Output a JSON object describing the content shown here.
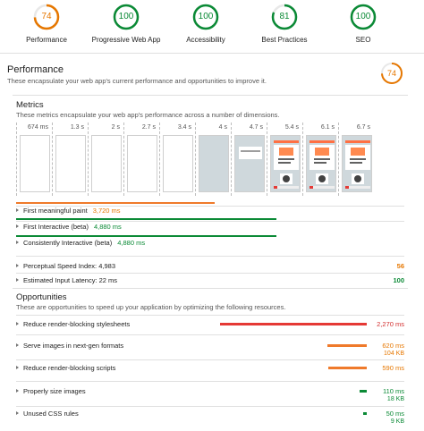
{
  "colors": {
    "orange": "#e67700",
    "green": "#0b8a36",
    "red": "#d32f2f",
    "orange_bar": "#ef7a2b",
    "red_bar": "#e53935"
  },
  "scores": [
    {
      "label": "Performance",
      "value": "74",
      "color": "#e67700",
      "level": 0.74
    },
    {
      "label": "Progressive Web App",
      "value": "100",
      "color": "#0b8a36",
      "level": 1.0
    },
    {
      "label": "Accessibility",
      "value": "100",
      "color": "#0b8a36",
      "level": 1.0
    },
    {
      "label": "Best Practices",
      "value": "81",
      "color": "#0b8a36",
      "level": 0.81
    },
    {
      "label": "SEO",
      "value": "100",
      "color": "#0b8a36",
      "level": 1.0
    }
  ],
  "performance": {
    "title": "Performance",
    "description": "These encapsulate your web app's current performance and opportunities to improve it.",
    "score": "74"
  },
  "metrics": {
    "title": "Metrics",
    "description": "These metrics encapsulate your web app's performance across a number of dimensions.",
    "filmstrip_times": [
      "674 ms",
      "1.3 s",
      "2 s",
      "2.7 s",
      "3.4 s",
      "4 s",
      "4.7 s",
      "5.4 s",
      "6.1 s",
      "6.7 s"
    ],
    "rows": [
      {
        "name": "First meaningful paint",
        "value": "3,720 ms",
        "score": ""
      },
      {
        "name": "First Interactive (beta)",
        "value": "4,880 ms",
        "score": ""
      },
      {
        "name": "Consistently Interactive (beta)",
        "value": "4,880 ms",
        "score": ""
      },
      {
        "name": "Perceptual Speed Index: 4,983",
        "value": "",
        "score": "56"
      },
      {
        "name": "Estimated Input Latency: 22 ms",
        "value": "",
        "score": "100"
      }
    ]
  },
  "opportunities": {
    "title": "Opportunities",
    "description": "These are opportunities to speed up your application by optimizing the following resources.",
    "rows": [
      {
        "name": "Reduce render-blocking stylesheets",
        "value": "2,270 ms",
        "sub": "",
        "fraction": 1.0
      },
      {
        "name": "Serve images in next-gen formats",
        "value": "620 ms",
        "sub": "104 KB",
        "fraction": 0.27
      },
      {
        "name": "Reduce render-blocking scripts",
        "value": "590 ms",
        "sub": "",
        "fraction": 0.26
      },
      {
        "name": "Properly size images",
        "value": "110 ms",
        "sub": "18 KB",
        "fraction": 0.05
      },
      {
        "name": "Unused CSS rules",
        "value": "50 ms",
        "sub": "9 KB",
        "fraction": 0.02
      }
    ]
  }
}
